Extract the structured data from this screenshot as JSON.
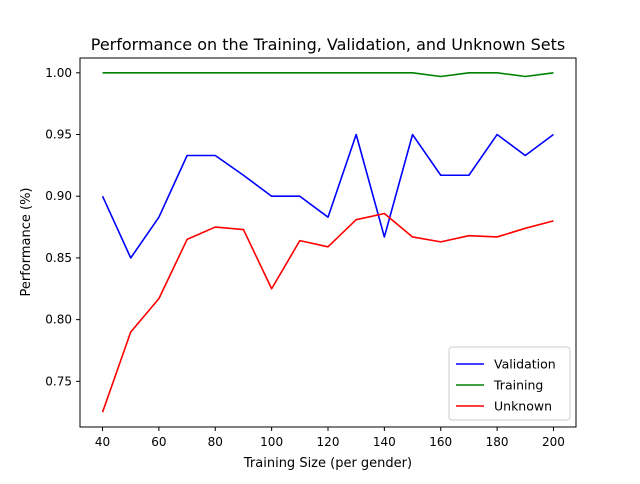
{
  "chart_data": {
    "type": "line",
    "title": "Performance on the Training, Validation, and Unknown Sets",
    "xlabel": "Training Size (per gender)",
    "ylabel": "Performance (%)",
    "xlim": [
      32,
      208
    ],
    "ylim": [
      0.713,
      1.012
    ],
    "xticks": [
      40,
      60,
      80,
      100,
      120,
      140,
      160,
      180,
      200
    ],
    "yticks": [
      0.75,
      0.8,
      0.85,
      0.9,
      0.95,
      1.0
    ],
    "ytick_labels": [
      "0.75",
      "0.80",
      "0.85",
      "0.90",
      "0.95",
      "1.00"
    ],
    "grid": false,
    "legend_position": "lower-right",
    "x": [
      40,
      50,
      60,
      70,
      80,
      90,
      100,
      110,
      120,
      130,
      140,
      150,
      160,
      170,
      180,
      190,
      200
    ],
    "series": [
      {
        "name": "Validation",
        "color": "#0000ff",
        "values": [
          0.9,
          0.85,
          0.883,
          0.933,
          0.933,
          0.917,
          0.9,
          0.9,
          0.883,
          0.95,
          0.867,
          0.95,
          0.917,
          0.917,
          0.95,
          0.933,
          0.95
        ]
      },
      {
        "name": "Training",
        "color": "#008000",
        "values": [
          1.0,
          1.0,
          1.0,
          1.0,
          1.0,
          1.0,
          1.0,
          1.0,
          1.0,
          1.0,
          1.0,
          1.0,
          0.997,
          1.0,
          1.0,
          0.997,
          1.0
        ]
      },
      {
        "name": "Unknown",
        "color": "#ff0000",
        "values": [
          0.725,
          0.79,
          0.817,
          0.865,
          0.875,
          0.873,
          0.825,
          0.864,
          0.859,
          0.881,
          0.886,
          0.867,
          0.863,
          0.868,
          0.867,
          0.874,
          0.88
        ]
      }
    ]
  }
}
